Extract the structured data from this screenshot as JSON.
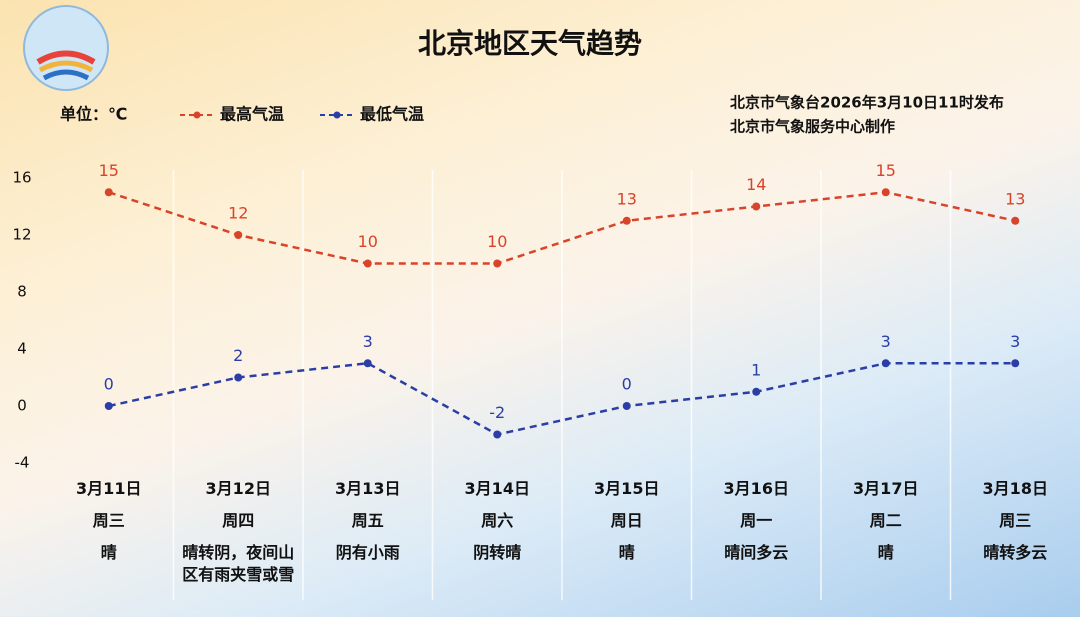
{
  "chart_data": {
    "type": "line",
    "title": "北京地区天气趋势",
    "unit_label": "单位：℃",
    "source": [
      "北京市气象台2026年3月10日11时发布",
      "北京市气象服务中心制作"
    ],
    "categories": [
      "3月11日",
      "3月12日",
      "3月13日",
      "3月14日",
      "3月15日",
      "3月16日",
      "3月17日",
      "3月18日"
    ],
    "weekdays": [
      "周三",
      "周四",
      "周五",
      "周六",
      "周日",
      "周一",
      "周二",
      "周三"
    ],
    "weather": [
      "晴",
      "晴转阴，夜间山区有雨夹雪或雪",
      "阴有小雨",
      "阴转晴",
      "晴",
      "晴间多云",
      "晴",
      "晴转多云"
    ],
    "series": [
      {
        "name": "最高气温",
        "color": "#d9432a",
        "values": [
          15,
          12,
          10,
          10,
          13,
          14,
          15,
          13
        ]
      },
      {
        "name": "最低气温",
        "color": "#2a3ea6",
        "values": [
          0,
          2,
          3,
          -2,
          0,
          1,
          3,
          3
        ]
      }
    ],
    "ylim": [
      -4,
      16
    ],
    "yticks": [
      -4,
      0,
      4,
      8,
      12,
      16
    ]
  }
}
